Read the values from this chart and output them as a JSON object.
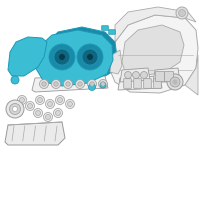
{
  "bg_color": "#ffffff",
  "fig_size": [
    2.0,
    2.0
  ],
  "dpi": 100,
  "hc": "#3bbdd4",
  "he": "#1a9ab8",
  "hc_dark": "#1a8aa8",
  "hc_darker": "#0e6680",
  "lc": "#aaaaaa",
  "oc": "#999999",
  "wc": "#ffffff"
}
